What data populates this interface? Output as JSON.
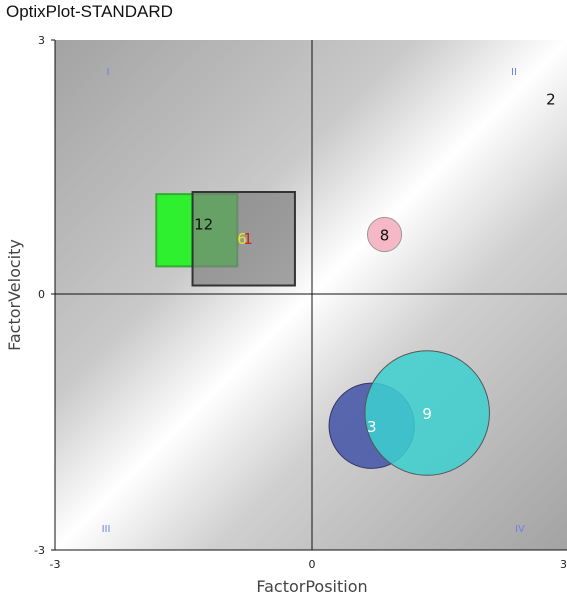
{
  "title": "OptixPlot-STANDARD",
  "chart_data": {
    "type": "scatter",
    "title": "OptixPlot-STANDARD",
    "xlabel": "FactorPosition",
    "ylabel": "FactorVelocity",
    "xlim": [
      -3,
      3
    ],
    "ylim": [
      -3,
      3
    ],
    "xticks": [
      "-3",
      "0",
      "3"
    ],
    "yticks": [
      "-3",
      "0",
      "3"
    ],
    "quadrants": [
      {
        "id": "I",
        "label": "I"
      },
      {
        "id": "II",
        "label": "II"
      },
      {
        "id": "III",
        "label": "III"
      },
      {
        "id": "IV",
        "label": "IV"
      }
    ],
    "rect_points": [
      {
        "label": "12",
        "x": -1.35,
        "y": 0.75,
        "w": 0.95,
        "h": 0.85,
        "fill": "#2ef02e",
        "stroke": "#33aa33",
        "opacity": 1.0,
        "text_color": "#111111"
      },
      {
        "label": "1",
        "x": -0.8,
        "y": 0.65,
        "w": 1.2,
        "h": 1.1,
        "fill": "#7f7f7f",
        "stroke": "#333333",
        "opacity": 0.7,
        "text_color": "#cc2222"
      },
      {
        "label": "6",
        "x": -0.85,
        "y": 0.65,
        "w": 0,
        "h": 0,
        "fill": "none",
        "stroke": "none",
        "opacity": 1.0,
        "text_color": "#e8e820"
      }
    ],
    "bubbles": [
      {
        "label": "2",
        "x": 2.8,
        "y": 2.3,
        "r": 0,
        "fill": "none",
        "stroke": "none",
        "opacity": 1.0,
        "text_color": "#111111"
      },
      {
        "label": "8",
        "x": 0.85,
        "y": 0.7,
        "r": 0.2,
        "fill": "#f5b8c4",
        "stroke": "#999999",
        "opacity": 1.0,
        "text_color": "#111111"
      },
      {
        "label": "3",
        "x": 0.7,
        "y": -1.55,
        "r": 0.5,
        "fill": "#4a5aa8",
        "stroke": "#333366",
        "opacity": 0.9,
        "text_color": "#ffffff"
      },
      {
        "label": "9",
        "x": 1.35,
        "y": -1.4,
        "r": 0.73,
        "fill": "#3cd0d0",
        "stroke": "#555555",
        "opacity": 0.85,
        "text_color": "#ffffff"
      }
    ],
    "grid": false,
    "colors": {
      "background_dark": "#a5a5a5",
      "background_light": "#ffffff",
      "axis": "#111111"
    }
  }
}
